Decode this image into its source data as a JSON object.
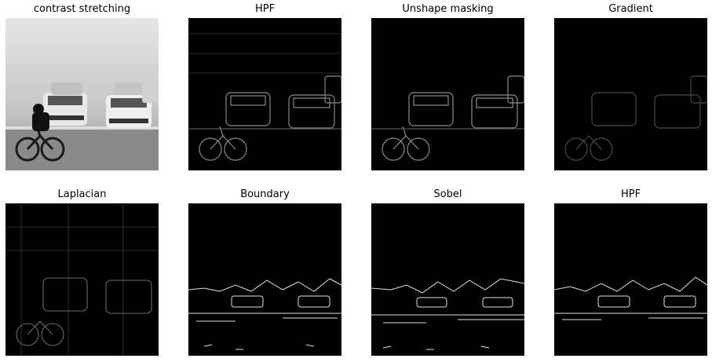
{
  "panels": [
    {
      "title": "contrast stretching",
      "style": "foggy"
    },
    {
      "title": "HPF",
      "style": "edges-soft"
    },
    {
      "title": "Unshape masking",
      "style": "edges-soft"
    },
    {
      "title": "Gradient",
      "style": "edges-dim"
    },
    {
      "title": "Laplacian",
      "style": "edges-dim"
    },
    {
      "title": "Boundary",
      "style": "boundary"
    },
    {
      "title": "Sobel",
      "style": "boundary"
    },
    {
      "title": "HPF",
      "style": "boundary"
    }
  ]
}
